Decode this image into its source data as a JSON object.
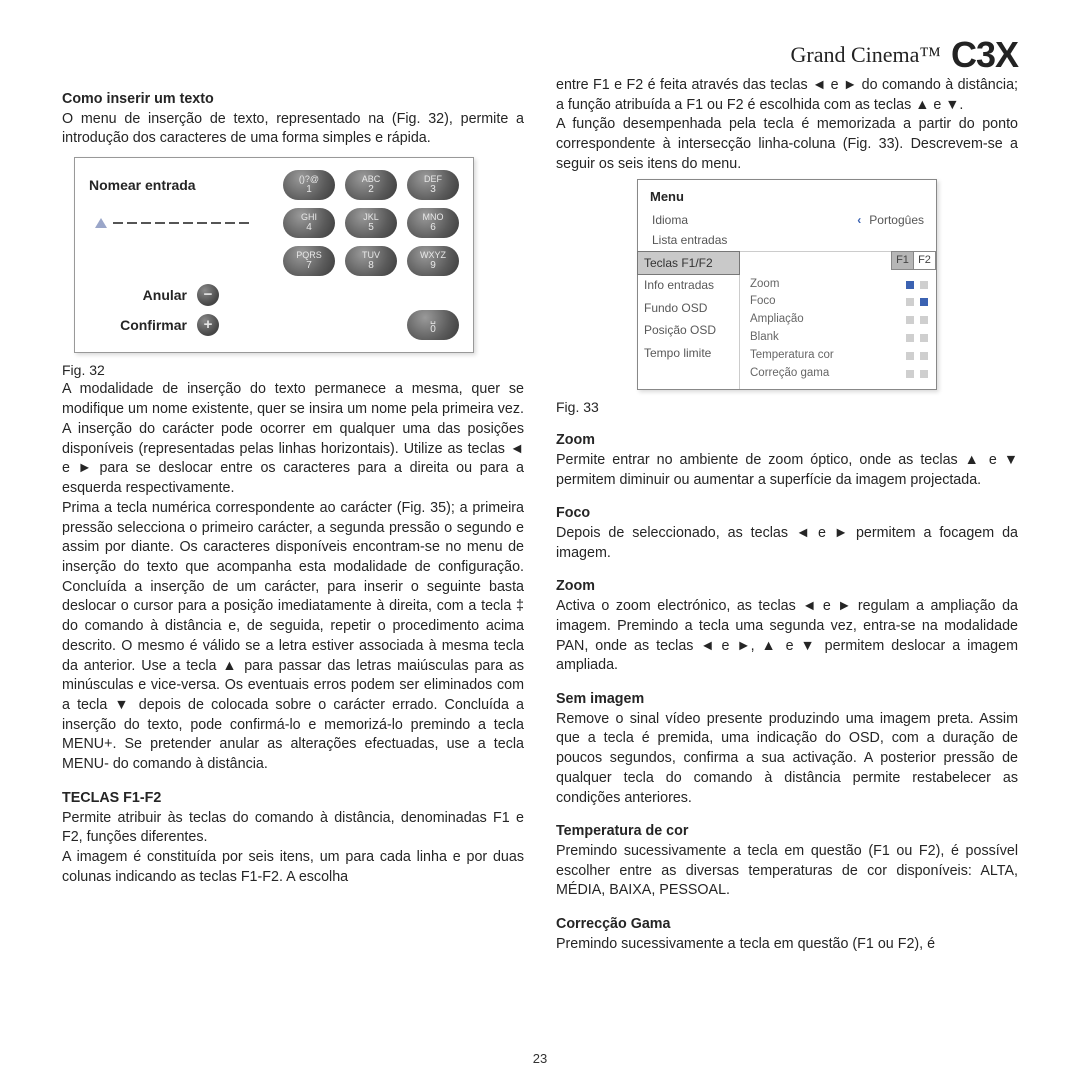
{
  "brand": {
    "script": "Grand Cinema™",
    "bold": "C3X"
  },
  "page_number": "23",
  "fig32_label": "Fig. 32",
  "fig33_label": "Fig. 33",
  "left": {
    "h1": "Como inserir um texto",
    "p1": "O menu de inserção de texto, representado na (Fig. 32), permite a introdução dos caracteres de uma forma simples e rápida.",
    "keypad": {
      "title": "Nomear entrada",
      "annul": "Anular",
      "confirm": "Confirmar",
      "keys": [
        [
          "()?@",
          "1"
        ],
        [
          "ABC",
          "2"
        ],
        [
          "DEF",
          "3"
        ],
        [
          "GHI",
          "4"
        ],
        [
          "JKL",
          "5"
        ],
        [
          "MNO",
          "6"
        ],
        [
          "PQRS",
          "7"
        ],
        [
          "TUV",
          "8"
        ],
        [
          "WXYZ",
          "9"
        ]
      ],
      "zero": [
        "␣",
        "0"
      ]
    },
    "p2": "A modalidade de inserção do texto permanece a mesma, quer se modifique um nome existente, quer se insira um nome pela primeira vez. A inserção do carácter pode ocorrer em qualquer uma das posições disponíveis (representadas pelas linhas horizontais). Utilize as teclas ◄ e ► para se deslocar entre os caracteres para a direita ou para a esquerda respectivamente.",
    "p3": "Prima a tecla numérica correspondente ao carácter (Fig. 35); a primeira pressão selecciona o primeiro carácter, a segunda pressão o segundo e assim por diante. Os caracteres disponíveis encontram-se no menu de inserção do texto que acompanha esta modalidade de configuração. Concluída a inserção de um carácter, para inserir o seguinte basta deslocar o cursor para a posição imediatamente à direita, com a tecla ‡ do comando à distância e, de seguida, repetir o procedimento acima descrito. O mesmo é válido se a letra estiver associada à mesma tecla da anterior. Use a tecla ▲ para passar das letras maiúsculas para as minúsculas e vice-versa. Os eventuais erros podem ser eliminados com a tecla ▼ depois de colocada sobre o carácter errado. Concluída a inserção do texto, pode confirmá-lo e memorizá-lo premindo a tecla MENU+. Se pretender anular as alterações efectuadas, use a tecla MENU- do comando à distância.",
    "h2": "TECLAS F1-F2",
    "p4": "Permite atribuir às teclas do comando à distância, denominadas F1 e F2, funções diferentes.",
    "p5": "A imagem é constituída por seis itens, um para cada linha e por duas colunas indicando as teclas F1-F2. A escolha"
  },
  "right": {
    "p0a": "entre F1 e F2 é feita através das teclas ◄ e ► do comando à distância; a função atribuída a F1 ou F2 é escolhida com as teclas ▲ e ▼.",
    "p0b": "A função desempenhada pela tecla é memorizada a partir do ponto correspondente à intersecção linha-coluna (Fig. 33). Descrevem-se a seguir os seis itens do menu.",
    "menu": {
      "title": "Menu",
      "idioma_label": "Idioma",
      "idioma_value": "Portogûes",
      "lista": "Lista entradas",
      "side": [
        "Teclas F1/F2",
        "Info entradas",
        "Fundo OSD",
        "Posição OSD",
        "Tempo limite"
      ],
      "f1": "F1",
      "f2": "F2",
      "rows": [
        {
          "label": "Zoom",
          "f1": "on",
          "f2": "off"
        },
        {
          "label": "Foco",
          "f1": "off",
          "f2": "on"
        },
        {
          "label": "Ampliação",
          "f1": "off",
          "f2": "off"
        },
        {
          "label": "Blank",
          "f1": "off",
          "f2": "off"
        },
        {
          "label": "Temperatura cor",
          "f1": "off",
          "f2": "off"
        },
        {
          "label": "Correção gama",
          "f1": "off",
          "f2": "off"
        }
      ]
    },
    "zoom_h": "Zoom",
    "zoom_p": "Permite entrar no ambiente de zoom óptico, onde as teclas ▲ e ▼ permitem diminuir ou aumentar a superfície da imagem projectada.",
    "foco_h": "Foco",
    "foco_p": "Depois de seleccionado, as teclas ◄ e ► permitem a focagem da imagem.",
    "zoom2_h": "Zoom",
    "zoom2_p": "Activa o zoom electrónico, as teclas ◄ e ► regulam a ampliação da imagem. Premindo a tecla uma segunda vez, entra-se na modalidade PAN, onde as teclas ◄ e ►, ▲ e ▼ permitem deslocar a imagem ampliada.",
    "sem_h": "Sem imagem",
    "sem_p": "Remove o sinal vídeo presente produzindo uma imagem preta. Assim que a tecla é premida, uma indicação do OSD, com a duração de poucos segundos, confirma a sua activação. A posterior pressão de qualquer tecla do comando à distância permite restabelecer as condições anteriores.",
    "temp_h": "Temperatura de cor",
    "temp_p": "Premindo sucessivamente a tecla em questão (F1 ou F2), é possível escolher entre as diversas temperaturas de cor disponíveis: ALTA, MÉDIA, BAIXA, PESSOAL.",
    "gama_h": "Correcção Gama",
    "gama_p": "Premindo sucessivamente a tecla em questão (F1 ou F2), é"
  }
}
